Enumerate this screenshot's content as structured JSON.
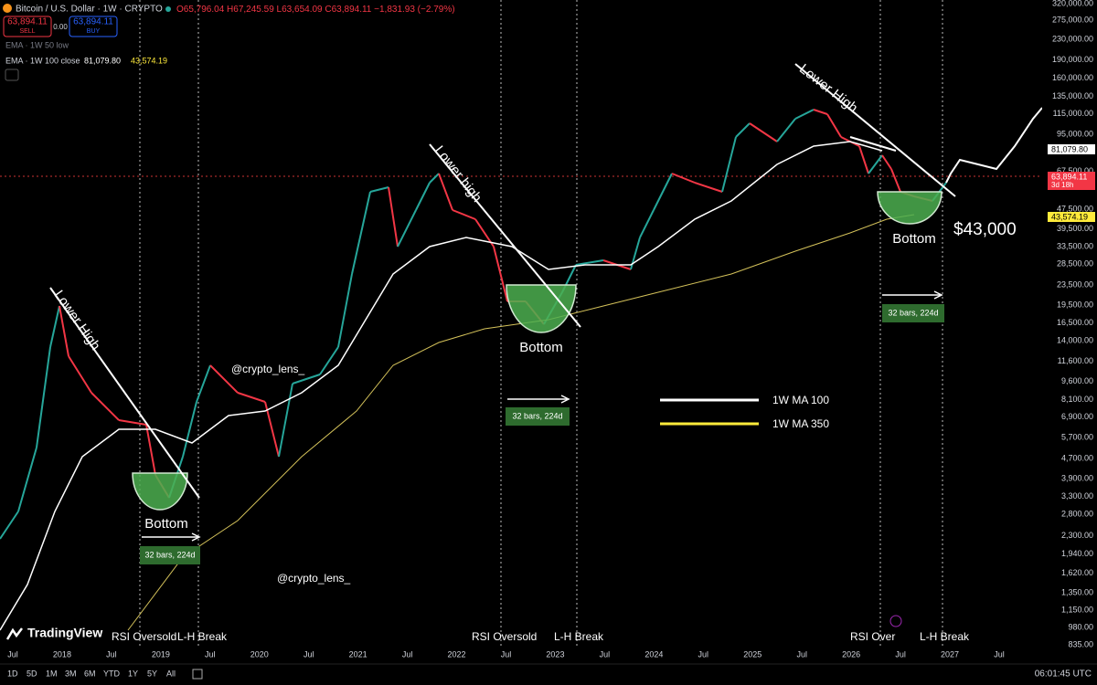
{
  "header": {
    "symbol": "Bitcoin / U.S. Dollar · 1W · CRYPTO",
    "ohlc": [
      "O65,796.04",
      "H67,245.59",
      "L63,654.09",
      "C63,894.11",
      "−1,831.93 (−2.79%)"
    ]
  },
  "trade": {
    "sell_price": "63,894.11",
    "sell": "SELL",
    "spread": "0.00",
    "buy_price": "63,894.11",
    "buy": "BUY"
  },
  "indicators": [
    {
      "label": "EMA · 1W 50 low"
    },
    {
      "label": "EMA · 1W 100 close",
      "values": [
        "81,079.80",
        "43,574.19"
      ]
    }
  ],
  "price_axis": {
    "ticks": [
      "320,000.00",
      "275,000.00",
      "230,000.00",
      "190,000.00",
      "160,000.00",
      "135,000.00",
      "115,000.00",
      "95,000.00",
      "67,500.00",
      "47,500.00",
      "39,500.00",
      "33,500.00",
      "28,500.00",
      "23,500.00",
      "19,500.00",
      "16,500.00",
      "14,000.00",
      "11,600.00",
      "9,600.00",
      "8,100.00",
      "6,900.00",
      "5,700.00",
      "4,700.00",
      "3,900.00",
      "3,300.00",
      "2,800.00",
      "2,300.00",
      "1,940.00",
      "1,620.00",
      "1,350.00",
      "1,150.00",
      "980.00",
      "835.00"
    ],
    "badges": [
      {
        "text": "81,079.80"
      },
      {
        "text": "63,894.11",
        "sub": "3d 18h"
      },
      {
        "text": "43,574.19"
      }
    ]
  },
  "time_axis": [
    "Jul",
    "2018",
    "Jul",
    "2019",
    "Jul",
    "2020",
    "Jul",
    "2021",
    "Jul",
    "2022",
    "Jul",
    "2023",
    "Jul",
    "2024",
    "Jul",
    "2025",
    "Jul",
    "2026",
    "Jul",
    "2027",
    "Jul"
  ],
  "annotations": {
    "lower_high": [
      "Lower High",
      "Lower high",
      "Lower High"
    ],
    "bottom": [
      "Bottom",
      "Bottom",
      "Bottom"
    ],
    "target": "$43,000",
    "duration": [
      "32 bars, 224d",
      "32 bars, 224d",
      "32 bars, 224d"
    ],
    "watermark": [
      "@crypto_lens_",
      "@crypto_lens_"
    ],
    "legend": [
      "1W MA 100",
      "1W MA 350"
    ],
    "rsi": [
      "RSI Oversold",
      "RSI Oversold",
      "RSI Over"
    ],
    "break": [
      "L-H Break",
      "L-H Break",
      "L-H Break"
    ]
  },
  "brand": "TradingView",
  "toolbar": {
    "ranges": [
      "1D",
      "5D",
      "1M",
      "3M",
      "6M",
      "YTD",
      "1Y",
      "5Y",
      "All"
    ],
    "clock": "06:01:45 UTC"
  }
}
